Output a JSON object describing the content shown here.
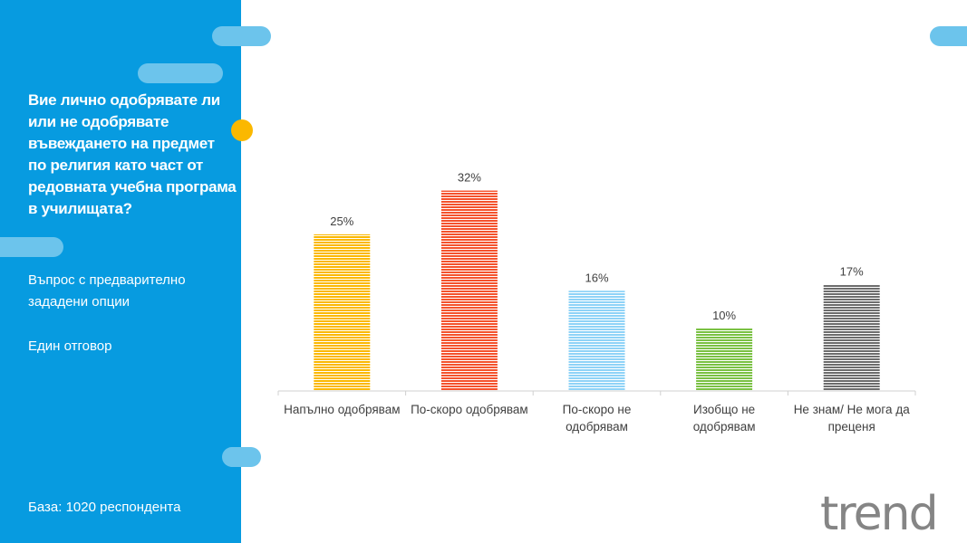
{
  "sidebar": {
    "question": "Вие лично одобрявате ли или не одобрявате въвеждането на предмет по религия като част от редовната учебна програма в училищата?",
    "question_type": "Въпрос с предварително зададени опции",
    "answer_type": "Един отговор",
    "base": "База:  1020 респондента"
  },
  "logo": {
    "text": "trend"
  },
  "colors": {
    "sidebar": "#079be0",
    "accent_pill": "#6cc4ec",
    "accent_dot": "#fbb800"
  },
  "chart_data": {
    "type": "bar",
    "categories": [
      "Напълно одобрявам",
      "По-скоро одобрявам",
      "По-скоро не одобрявам",
      "Изобщо не одобрявам",
      "Не знам/ Не мога да преценя"
    ],
    "category_lines": [
      [
        "Напълно одобрявам"
      ],
      [
        "По-скоро одобрявам"
      ],
      [
        "По-скоро не",
        "одобрявам"
      ],
      [
        "Изобщо не",
        "одобрявам"
      ],
      [
        "Не знам/ Не мога да",
        "преценя"
      ]
    ],
    "values": [
      25,
      32,
      16,
      10,
      17
    ],
    "data_labels": [
      "25%",
      "32%",
      "16%",
      "10%",
      "17%"
    ],
    "colors": [
      "#fbb800",
      "#f4522d",
      "#8fd3f7",
      "#7ac143",
      "#6d6d6d"
    ],
    "bar_style": "horizontal-striped",
    "ylim": [
      0,
      35
    ],
    "grid": false,
    "legend": "none"
  }
}
